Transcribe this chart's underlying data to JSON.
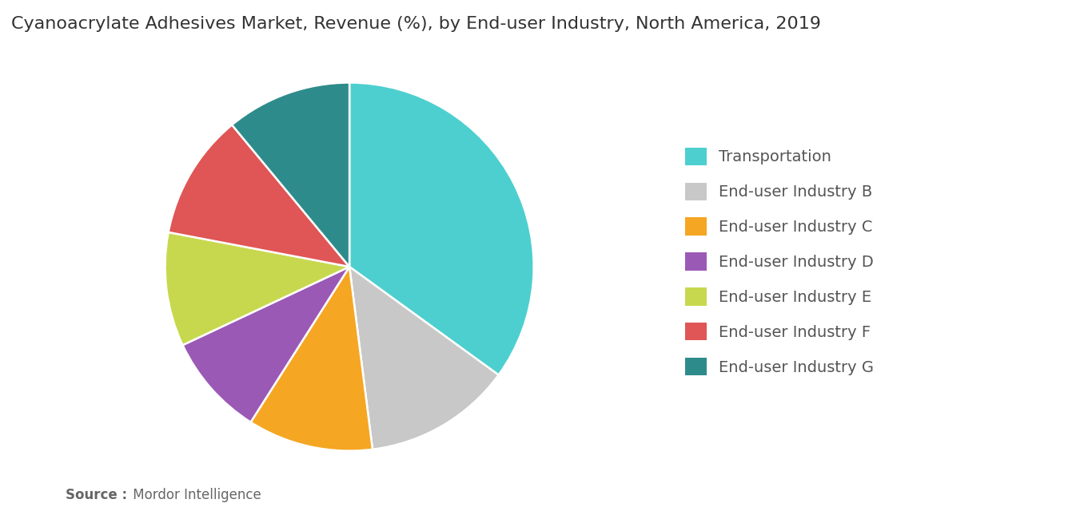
{
  "title": "Cyanoacrylate Adhesives Market, Revenue (%), by End-user Industry, North America, 2019",
  "title_fontsize": 16,
  "slices": [
    {
      "label": "Transportation",
      "value": 35,
      "color": "#4DCFCF"
    },
    {
      "label": "End-user Industry B",
      "value": 13,
      "color": "#C8C8C8"
    },
    {
      "label": "End-user Industry C",
      "value": 11,
      "color": "#F5A623"
    },
    {
      "label": "End-user Industry D",
      "value": 9,
      "color": "#9B59B6"
    },
    {
      "label": "End-user Industry E",
      "value": 10,
      "color": "#C8D84E"
    },
    {
      "label": "End-user Industry F",
      "value": 11,
      "color": "#E05555"
    },
    {
      "label": "End-user Industry G",
      "value": 11,
      "color": "#2E8B8B"
    }
  ],
  "source_bold": "Source :",
  "source_normal": " Mordor Intelligence",
  "background_color": "#FFFFFF",
  "legend_fontsize": 14,
  "startangle": 90
}
